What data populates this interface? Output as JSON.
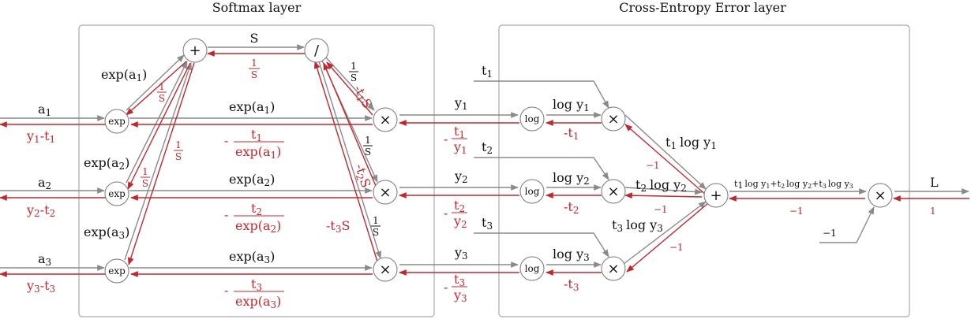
{
  "titles": {
    "softmax": "Softmax layer",
    "cross_entropy": "Cross-Entropy Error layer"
  },
  "colors": {
    "forward": "#8a8a8a",
    "backward": "#c0282e",
    "box": "#a9a9a9"
  },
  "nodes": {
    "exp": "exp",
    "log": "log",
    "plus": "+",
    "div": "/",
    "times": "×"
  },
  "softmax": {
    "inputs": [
      "a",
      "a",
      "a"
    ],
    "input_subs": [
      "1",
      "2",
      "3"
    ],
    "grad_inputs": [
      "y",
      "-t",
      "y",
      "-t",
      "y",
      "-t"
    ],
    "grad_subs": [
      "1",
      "1",
      "2",
      "2",
      "3",
      "3"
    ],
    "exp_labels": [
      "exp(a",
      "exp(a",
      "exp(a"
    ],
    "exp_subs": [
      "1",
      "2",
      "3"
    ],
    "sum_label": "S",
    "inv_s": {
      "num": "1",
      "den": "S"
    },
    "neg_t_s": [
      "-t",
      "S",
      "-t",
      "S",
      "-t",
      "S"
    ],
    "neg_t_s_subs": [
      "1",
      "2",
      "3"
    ],
    "grad_exp": {
      "minus": "-",
      "nums": [
        "t",
        "t",
        "t"
      ],
      "dens": [
        "exp(a",
        "exp(a",
        "exp(a"
      ],
      "subs": [
        "1",
        "2",
        "3"
      ],
      "close": ")"
    }
  },
  "cross_entropy": {
    "t_inputs": [
      "t",
      "t",
      "t"
    ],
    "t_subs": [
      "1",
      "2",
      "3"
    ],
    "y_outputs": [
      "y",
      "y",
      "y"
    ],
    "y_subs": [
      "1",
      "2",
      "3"
    ],
    "log_labels": [
      "log y",
      "log y",
      "log y"
    ],
    "log_subs": [
      "1",
      "2",
      "3"
    ],
    "neg_t": [
      "-t",
      "-t",
      "-t"
    ],
    "grad_y": {
      "minus": "-",
      "nums": [
        "t",
        "t",
        "t"
      ],
      "dens": [
        "y",
        "y",
        "y"
      ],
      "subs": [
        "1",
        "2",
        "3"
      ]
    },
    "product_labels": [
      "t",
      "log y",
      "t",
      "log y",
      "t",
      "log y"
    ],
    "product_subs": [
      "1",
      "1",
      "2",
      "2",
      "3",
      "3"
    ],
    "sum_label": "t",
    "sum_label_parts": [
      "log y",
      "+t",
      "log y",
      "+t",
      "log y"
    ],
    "sum_label_subs": [
      "1",
      "1",
      "2",
      "2",
      "3",
      "3"
    ],
    "minus_one": "−1",
    "L": "L",
    "one": "1"
  }
}
